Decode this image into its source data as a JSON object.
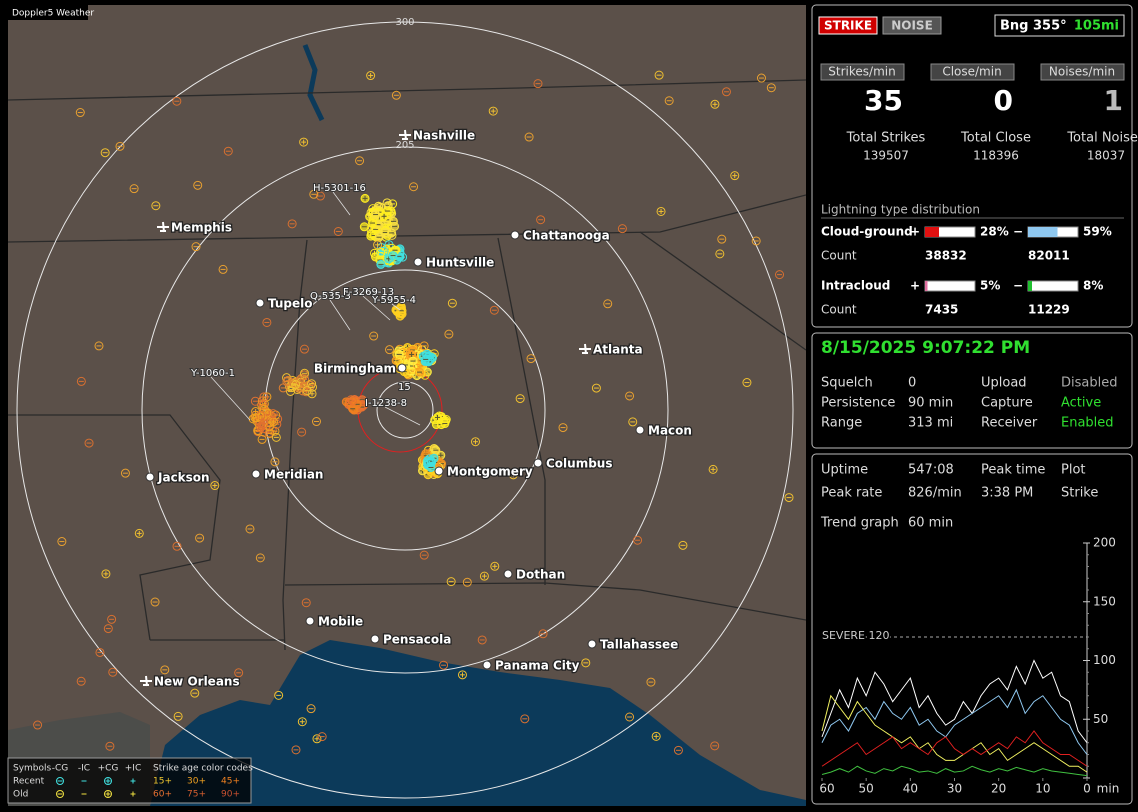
{
  "header": {
    "title": "Doppler5 Weather"
  },
  "map": {
    "ring_labels": [
      "300",
      "205"
    ],
    "cities": [
      "Nashville",
      "Memphis",
      "Chattanooga",
      "Huntsville",
      "Tupelo",
      "Birmingham",
      "Atlanta",
      "Macon",
      "Columbus",
      "Jackson",
      "Meridian",
      "Montgomery",
      "Dothan",
      "Mobile",
      "Pensacola",
      "Panama City",
      "Tallahassee",
      "New Orleans"
    ],
    "storm_labels": [
      "H-5301-16",
      "Q-535-3",
      "F-3269-13",
      "Y-5955-4",
      "Y-1060-1",
      "I-1238-8",
      "15"
    ]
  },
  "legend": {
    "title": "Symbols",
    "headers": [
      "-CG",
      "-IC",
      "+CG",
      "+IC"
    ],
    "age_title": "Strike age color codes",
    "rows": [
      {
        "label": "Recent",
        "ages": [
          "15+",
          "30+",
          "45+"
        ],
        "colors": [
          "#f0c830",
          "#f0a020",
          "#f08020"
        ]
      },
      {
        "label": "Old",
        "ages": [
          "60+",
          "75+",
          "90+"
        ],
        "colors": [
          "#e87030",
          "#d86030",
          "#c85030"
        ]
      }
    ]
  },
  "status": {
    "strike_button": "STRIKE",
    "noise_button": "NOISE",
    "bearing": "Bng 355°",
    "distance": "105mi"
  },
  "rates": [
    {
      "label": "Strikes/min",
      "value": 35,
      "total_label": "Total Strikes",
      "total": 139507,
      "color": "#ffffff"
    },
    {
      "label": "Close/min",
      "value": 0,
      "total_label": "Total Close",
      "total": 118396,
      "color": "#ffffff"
    },
    {
      "label": "Noises/min",
      "value": 1,
      "total_label": "Total Noises",
      "total": 18037,
      "color": "#bbbbbb"
    }
  ],
  "distribution": {
    "title": "Lightning type distribution",
    "rows": [
      {
        "name": "Cloud-ground",
        "count_label": "Count",
        "positive": {
          "sign": "+",
          "percent": 28,
          "label": "28%",
          "count": 38832,
          "color": "#e01010"
        },
        "negative": {
          "sign": "−",
          "percent": 59,
          "label": "59%",
          "count": 82011,
          "color": "#8fc8f0"
        }
      },
      {
        "name": "Intracloud",
        "count_label": "Count",
        "positive": {
          "sign": "+",
          "percent": 5,
          "label": "5%",
          "count": 7435,
          "color": "#e070a0"
        },
        "negative": {
          "sign": "−",
          "percent": 8,
          "label": "8%",
          "count": 11229,
          "color": "#20c030"
        }
      }
    ]
  },
  "clock": "8/15/2025 9:07:22 PM",
  "settings": [
    {
      "name": "Squelch",
      "value": 0,
      "name2": "Upload",
      "value2": "Disabled",
      "color2": "#aaaaaa"
    },
    {
      "name": "Persistence",
      "value": "90 min",
      "name2": "Capture",
      "value2": "Active",
      "color2": "#30e030"
    },
    {
      "name": "Range",
      "value": "313 mi",
      "name2": "Receiver",
      "value2": "Enabled",
      "color2": "#30e030"
    }
  ],
  "stats": {
    "uptime": {
      "label": "Uptime",
      "value": "547:08"
    },
    "peak_rate": {
      "label": "Peak rate",
      "value": "826/min"
    },
    "peak_time": {
      "label": "Peak time",
      "value": "3:38 PM"
    },
    "plot": {
      "label": "Plot",
      "value": "Strike"
    },
    "trend": {
      "label": "Trend graph",
      "value": "60 min"
    }
  },
  "chart_data": {
    "type": "line",
    "x": [
      60,
      58,
      56,
      54,
      52,
      50,
      48,
      46,
      44,
      42,
      40,
      38,
      36,
      34,
      32,
      30,
      28,
      26,
      24,
      22,
      20,
      18,
      16,
      14,
      12,
      10,
      8,
      6,
      4,
      2,
      0
    ],
    "xlim": [
      60,
      0
    ],
    "xticks": [
      60,
      50,
      40,
      30,
      20,
      10,
      0
    ],
    "x_label": "min",
    "ylim": [
      0,
      200
    ],
    "yticks": [
      0,
      50,
      100,
      150,
      200
    ],
    "threshold": {
      "value": 120,
      "label": "SEVERE 120"
    },
    "series": [
      {
        "color": "#ffffff",
        "values": [
          35,
          55,
          75,
          60,
          85,
          70,
          90,
          80,
          65,
          75,
          85,
          60,
          70,
          55,
          45,
          50,
          65,
          55,
          70,
          80,
          85,
          75,
          95,
          80,
          100,
          85,
          90,
          70,
          65,
          40,
          30
        ]
      },
      {
        "color": "#8fc8f0",
        "values": [
          30,
          45,
          50,
          40,
          55,
          60,
          50,
          65,
          55,
          50,
          60,
          45,
          50,
          40,
          35,
          45,
          50,
          55,
          60,
          65,
          70,
          60,
          75,
          55,
          65,
          70,
          60,
          50,
          45,
          30,
          20
        ]
      },
      {
        "color": "#f0f060",
        "values": [
          40,
          70,
          60,
          50,
          65,
          55,
          45,
          40,
          35,
          30,
          35,
          25,
          30,
          20,
          15,
          15,
          20,
          25,
          30,
          20,
          25,
          15,
          20,
          25,
          30,
          25,
          20,
          15,
          10,
          10,
          5
        ]
      },
      {
        "color": "#e02020",
        "values": [
          10,
          15,
          20,
          25,
          30,
          20,
          25,
          30,
          35,
          25,
          30,
          25,
          20,
          30,
          35,
          25,
          20,
          25,
          20,
          25,
          30,
          25,
          35,
          30,
          40,
          30,
          25,
          20,
          20,
          15,
          10
        ]
      },
      {
        "color": "#40c040",
        "values": [
          3,
          5,
          8,
          5,
          10,
          6,
          4,
          8,
          6,
          10,
          8,
          5,
          6,
          4,
          8,
          5,
          6,
          10,
          7,
          5,
          8,
          6,
          9,
          7,
          5,
          8,
          6,
          5,
          4,
          3,
          2
        ]
      }
    ]
  }
}
